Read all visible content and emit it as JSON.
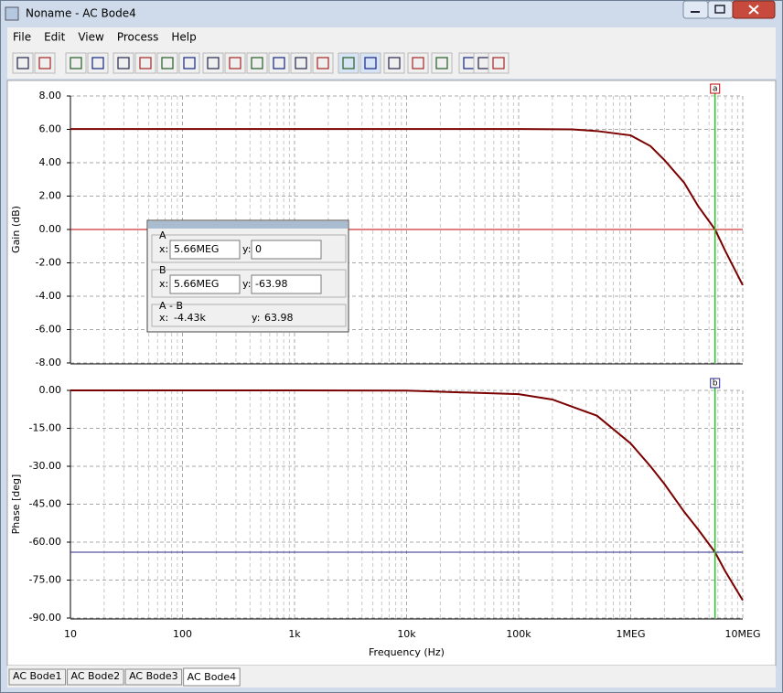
{
  "window": {
    "title": "Noname - AC Bode4"
  },
  "menu": [
    "File",
    "Edit",
    "View",
    "Process",
    "Help"
  ],
  "chart_data": [
    {
      "type": "line",
      "y_label": "Gain (dB)",
      "xscale": "log",
      "xlim": [
        10,
        10000000
      ],
      "xticks": [
        10,
        100,
        1000,
        10000,
        100000,
        1000000,
        10000000
      ],
      "ylim": [
        -8,
        8
      ],
      "yticks": [
        {
          "value": 8,
          "label": "8.00"
        },
        {
          "value": 6,
          "label": "6.00"
        },
        {
          "value": 4,
          "label": "4.00"
        },
        {
          "value": 2,
          "label": "2.00"
        },
        {
          "value": 0,
          "label": "0.00"
        },
        {
          "value": -2,
          "label": "-2.00"
        },
        {
          "value": -4,
          "label": "-4.00"
        },
        {
          "value": -6,
          "label": "-6.00"
        },
        {
          "value": -8,
          "label": "-8.00"
        }
      ],
      "grid": true,
      "series": [
        {
          "color": "#7b0000",
          "x": [
            10,
            100000,
            300000,
            500000,
            1000000,
            1500000,
            2000000,
            3000000,
            4000000,
            5660000,
            7000000,
            10000000
          ],
          "values": [
            6.02,
            6.02,
            6.0,
            5.9,
            5.64,
            5.0,
            4.16,
            2.8,
            1.4,
            0,
            -1.3,
            -3.34
          ]
        }
      ]
    },
    {
      "type": "line",
      "y_label": "Phase [deg]",
      "x_label": "Frequency (Hz)",
      "xscale": "log",
      "xlim": [
        10,
        10000000
      ],
      "xticks": [
        10,
        100,
        {
          "value": 1000,
          "label": "1k"
        },
        {
          "value": 10000,
          "label": "10k"
        },
        {
          "value": 100000,
          "label": "100k"
        },
        {
          "value": 1000000,
          "label": "1MEG"
        },
        {
          "value": 10000000,
          "label": "10MEG"
        }
      ],
      "ylim": [
        -90,
        0
      ],
      "yticks": [
        {
          "value": 0,
          "label": "0.00"
        },
        {
          "value": -15,
          "label": "-15.00"
        },
        {
          "value": -30,
          "label": "-30.00"
        },
        {
          "value": -45,
          "label": "-45.00"
        },
        {
          "value": -60,
          "label": "-60.00"
        },
        {
          "value": -75,
          "label": "-75.00"
        },
        {
          "value": -90,
          "label": "-90.00"
        }
      ],
      "grid": true,
      "series": [
        {
          "color": "#7b0000",
          "x": [
            10,
            1000,
            10000,
            100000,
            200000,
            500000,
            1000000,
            1500000,
            2000000,
            3000000,
            4000000,
            5660000,
            7000000,
            10000000
          ],
          "values": [
            0,
            0,
            -0.1,
            -1.5,
            -3.6,
            -10,
            -21,
            -30,
            -37,
            -48,
            -55,
            -63.98,
            -71.6,
            -83
          ]
        }
      ]
    }
  ],
  "cursor_panel": {
    "x_caption": "x:",
    "y_caption": "y:",
    "a": {
      "label": "A",
      "marker": "a",
      "x": {
        "value": 5660000,
        "label": "5.66MEG"
      },
      "y": 0,
      "color": "#c00000"
    },
    "b": {
      "label": "B",
      "marker": "b",
      "x": {
        "value": 5660000,
        "label": "5.66MEG"
      },
      "y": -63.98,
      "color": "#2a2a8c"
    },
    "diff": {
      "label": "A - B",
      "x": "-4.43k",
      "y": 63.98
    }
  },
  "tabs": [
    "AC Bode1",
    "AC Bode2",
    "AC Bode3",
    "AC Bode4"
  ]
}
